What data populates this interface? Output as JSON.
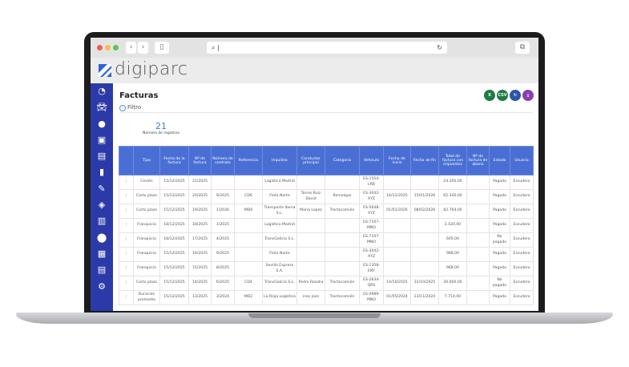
{
  "browser": {
    "url": "|"
  },
  "app": {
    "logo": "digiparc"
  },
  "sidebar": {
    "icons": [
      "dashboard-icon",
      "car-icon",
      "user-icon",
      "contract-icon",
      "document-icon",
      "fuel-icon",
      "wrench-icon",
      "layers-icon",
      "building-icon",
      "location-icon",
      "truck-icon",
      "invoice-icon",
      "gear-icon"
    ]
  },
  "page": {
    "title": "Facturas",
    "filter_label": "Filtro",
    "count": "21",
    "count_label": "Número de registros"
  },
  "actions": [
    {
      "label": "",
      "icon": "excel-icon",
      "color": "#1f7a45"
    },
    {
      "label": "CSV",
      "icon": "csv-icon",
      "color": "#1f7a45"
    },
    {
      "label": "",
      "icon": "refresh-icon",
      "color": "#2a56a8"
    },
    {
      "label": "",
      "icon": "download-icon",
      "color": "#8a3fb0"
    }
  ],
  "table": {
    "headers": [
      "",
      "Tipo",
      "Fecha de la factura",
      "Nº de factura",
      "Número de contrato",
      "Referencia",
      "Inquilino",
      "Conductor principal",
      "Categoría",
      "Vehículo",
      "Fecha de inicio",
      "Fecha de fin",
      "Total de factura con impuestos",
      "Nº de factura de abono",
      "Estado",
      "Usuario"
    ],
    "rows": [
      [
        "⋮",
        "Cesión",
        "15/12/2025",
        "21/2025",
        "",
        "",
        "Logística Madrid",
        "",
        "",
        "ES-1554-LRB",
        "",
        "",
        "24.200,00",
        "",
        "Pagado",
        "Escudero"
      ],
      [
        "⋮",
        "Corto plazo",
        "15/12/2025",
        "20/2025",
        "9/2025",
        "CD6",
        "Flota Norte",
        "Torres Ruiz David",
        "Remolque",
        "ES-3042-XYZ",
        "16/12/2025",
        "15/01/2026",
        "65.340,00",
        "",
        "Pagado",
        "Escudero"
      ],
      [
        "⋮",
        "Corto plazo",
        "15/12/2025",
        "19/2025",
        "1/2026",
        "MD6",
        "Transporte Iberia S.L.",
        "Maria Lopez",
        "Tractocamión",
        "ES-5648-XYZ",
        "01/01/2026",
        "08/02/2026",
        "82.764,00",
        "",
        "Pagado",
        "Escudero"
      ],
      [
        "⋮",
        "Franquicia",
        "18/12/2025",
        "18/2025",
        "1/2025",
        "",
        "Logística Madrid",
        "",
        "",
        "ES-7107-MNO",
        "",
        "",
        "2.420,00",
        "",
        "Pagado",
        "Escudero"
      ],
      [
        "⋮",
        "Franquicia",
        "18/12/2025",
        "17/2025",
        "4/2025",
        "",
        "TransGalicia S.L.",
        "",
        "",
        "ES-7107-MNO",
        "",
        "",
        "605,00",
        "",
        "No pagado",
        "Escudero"
      ],
      [
        "⋮",
        "Franquicia",
        "15/12/2025",
        "16/2025",
        "9/2025",
        "",
        "Flota Norte",
        "",
        "",
        "ES-3042-XYZ",
        "",
        "",
        "968,00",
        "",
        "Pagado",
        "Escudero"
      ],
      [
        "⋮",
        "Franquicia",
        "15/12/2025",
        "15/2025",
        "8/2025",
        "",
        "Sevilla Express S.A.",
        "",
        "",
        "ES-1358-ENY",
        "",
        "",
        "968,00",
        "",
        "Pagado",
        "Escudero"
      ],
      [
        "⋮",
        "Corto plazo",
        "15/12/2025",
        "14/2025",
        "6/2025",
        "CD4",
        "TransGalicia S.L.",
        "Pedro Rosalia",
        "Tractocamión",
        "ES-2634-QRS",
        "14/10/2025",
        "31/10/2025",
        "30.600,00",
        "",
        "No pagado",
        "Escudero"
      ],
      [
        "⋮",
        "Duración promedio",
        "15/12/2025",
        "13/2025",
        "3/2024",
        "MD2",
        "La Rioja Logística",
        "ines jose",
        "Tractocamión",
        "ES-4989-MNO",
        "01/05/2024",
        "23/11/2024",
        "7.714,00",
        "",
        "Pagado",
        "Escudero"
      ]
    ]
  }
}
